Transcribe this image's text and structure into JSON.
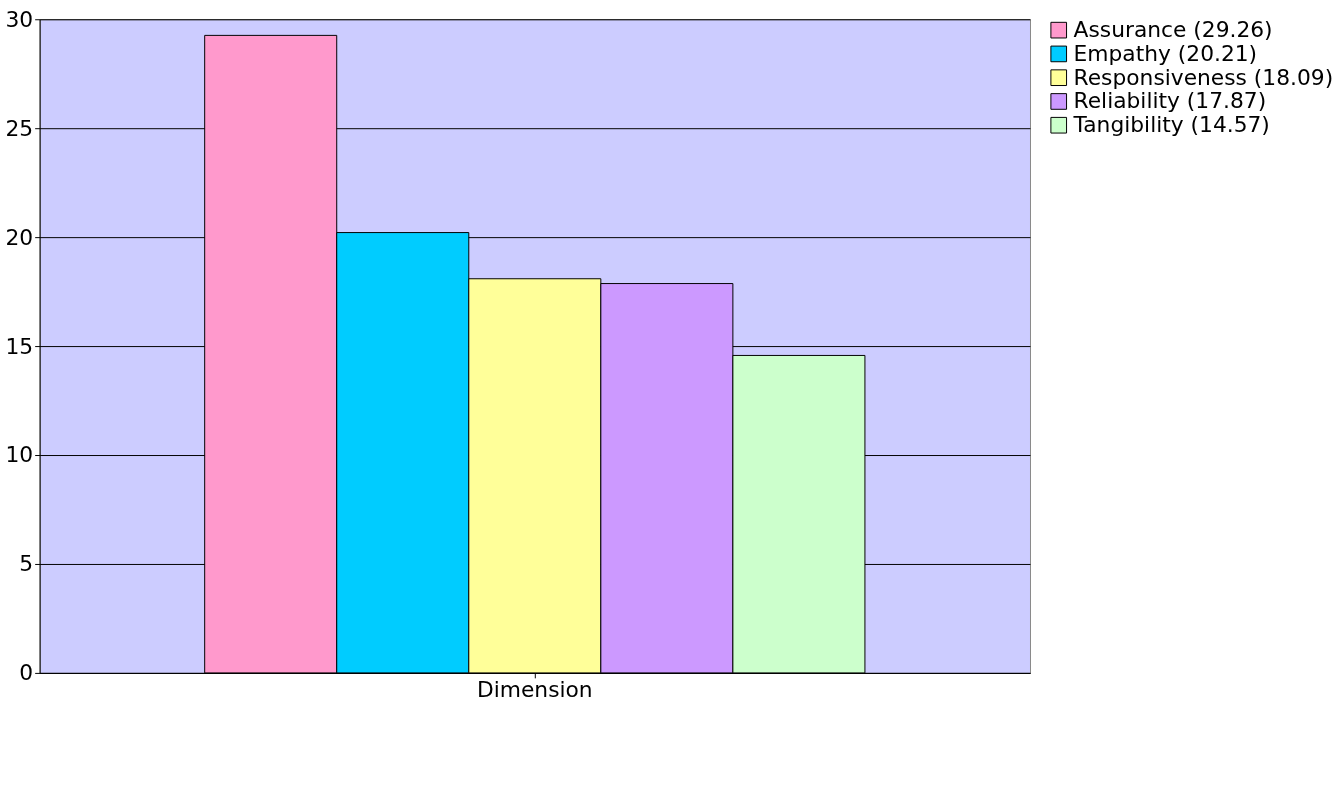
{
  "chart_data": {
    "type": "bar",
    "categories": [
      "Dimension"
    ],
    "series": [
      {
        "name": "Assurance (29.26)",
        "color": "#ff99cc",
        "values": [
          29.26
        ]
      },
      {
        "name": "Empathy (20.21)",
        "color": "#00ccff",
        "values": [
          20.21
        ]
      },
      {
        "name": "Responsiveness (18.09)",
        "color": "#ffff99",
        "values": [
          18.09
        ]
      },
      {
        "name": "Reliability (17.87)",
        "color": "#cc99ff",
        "values": [
          17.87
        ]
      },
      {
        "name": "Tangibility (14.57)",
        "color": "#ccffcc",
        "values": [
          14.57
        ]
      }
    ],
    "ylim": [
      0,
      30
    ],
    "yticks": [
      0,
      5,
      10,
      15,
      20,
      25,
      30
    ],
    "grid": "y",
    "legend": "right"
  }
}
